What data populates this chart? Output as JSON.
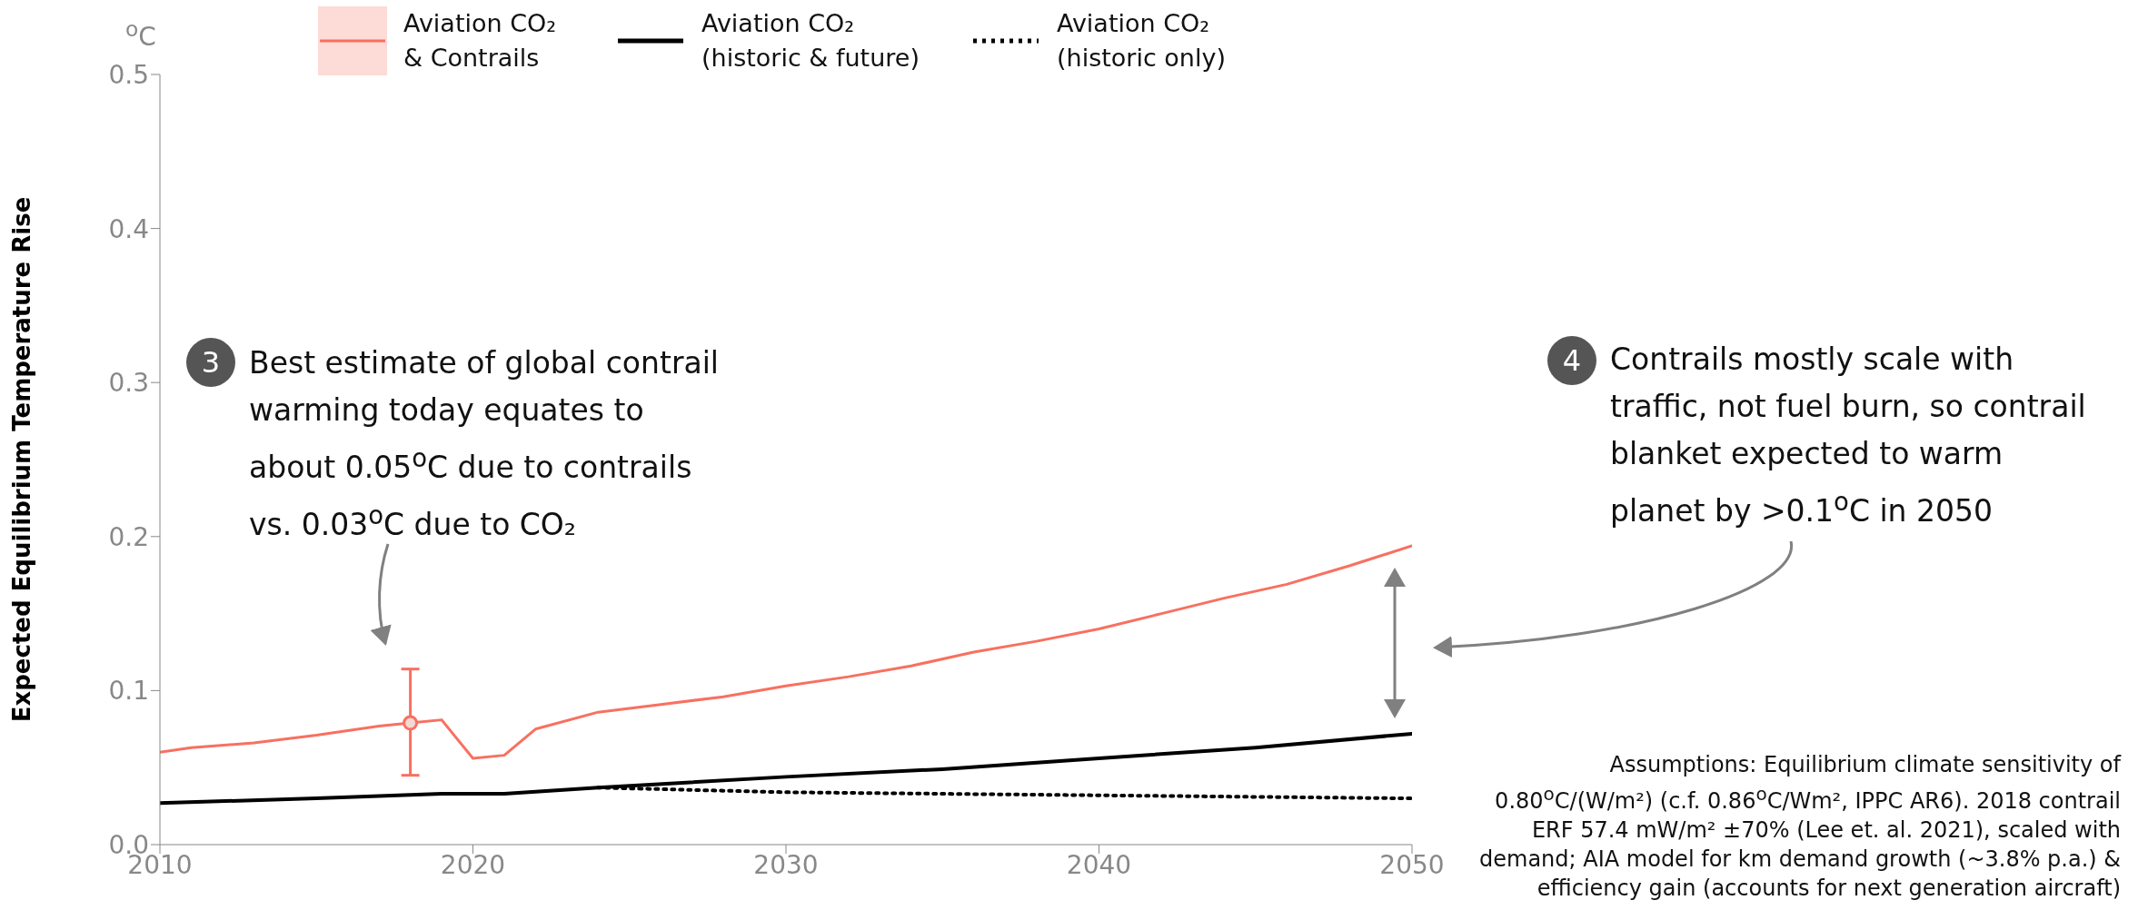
{
  "chart_data": {
    "type": "line",
    "ylabel": "Expected Equilibrium Temperature Rise",
    "xlim": [
      2010,
      2050
    ],
    "xticks": [
      2010,
      2020,
      2030,
      2040,
      2050
    ],
    "ylim": [
      0,
      0.5
    ],
    "yticks": [
      {
        "value": 0,
        "label": "0.0"
      },
      0.1,
      0.2,
      0.3,
      0.4,
      0.5
    ],
    "grid": false,
    "legend": "top",
    "line_style": "solid",
    "marker": "none",
    "series": [
      {
        "name": "Aviation CO₂\n& Contrails",
        "color": "#f87060",
        "x": [
          2010,
          2011,
          2013,
          2015,
          2017,
          2018,
          2019,
          2020,
          2021,
          2022,
          2024,
          2026,
          2028,
          2030,
          2032,
          2034,
          2036,
          2038,
          2040,
          2042,
          2044,
          2046,
          2048,
          2050
        ],
        "values": [
          0.06,
          0.063,
          0.066,
          0.071,
          0.077,
          0.079,
          0.081,
          0.056,
          0.058,
          0.075,
          0.086,
          0.091,
          0.096,
          0.103,
          0.109,
          0.116,
          0.125,
          0.132,
          0.14,
          0.15,
          0.16,
          0.169,
          0.181,
          0.194
        ]
      },
      {
        "name": "Aviation CO₂\n(historic & future)",
        "color": "#000000",
        "x": [
          2010,
          2015,
          2019,
          2021,
          2024,
          2030,
          2035,
          2040,
          2045,
          2050
        ],
        "values": [
          0.027,
          0.03,
          0.033,
          0.033,
          0.037,
          0.044,
          0.049,
          0.056,
          0.063,
          0.072
        ]
      },
      {
        "name": "Aviation CO₂\n(historic only)",
        "color": "#000000",
        "line_style": "dotted",
        "x": [
          2024,
          2030,
          2040,
          2050
        ],
        "values": [
          0.037,
          0.034,
          0.032,
          0.03
        ]
      },
      {
        "type": "scatter",
        "color": "#f87060",
        "marker": "circle",
        "x": [
          2018
        ],
        "values": [
          0.079
        ],
        "errors": [
          [
            0.045,
            0.114
          ]
        ]
      }
    ],
    "annotations": [
      "$^{o}$C",
      "3",
      "Best estimate of global contrail\nwarming today equates to\nabout 0.05$^{o}$C due to contrails\nvs. 0.03$^{o}$C due to CO₂",
      "4",
      "Contrails mostly scale with\ntraffic, not fuel burn, so contrail\nblanket expected to warm\nplanet by >0.1$^{o}$C in 2050",
      "Assumptions: Equilibrium climate sensitivity of\n0.80$^{o}$C/(W/m²) (c.f. 0.86$^{o}$C/Wm², IPPC AR6). 2018 contrail\nERF 57.4 mW/m² ±70% (Lee et. al. 2021), scaled with\ndemand; AIA model for km demand growth (~3.8% p.a.) &\nefficiency gain (accounts for next generation aircraft)"
    ]
  }
}
